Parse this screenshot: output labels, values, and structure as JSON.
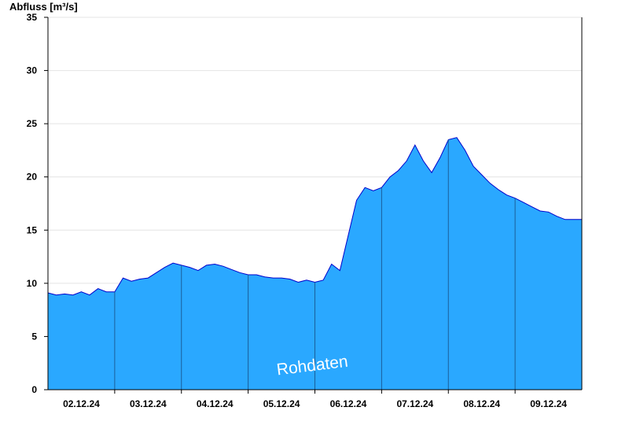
{
  "chart_data": {
    "type": "area",
    "ylabel": "Abfluss [m³/s]",
    "ylim": [
      0,
      35
    ],
    "yticks": [
      0,
      5,
      10,
      15,
      20,
      25,
      30,
      35
    ],
    "xlim": [
      "2024-12-01 12:00",
      "2024-12-09 12:00"
    ],
    "xticks": [
      {
        "label": "02.12.24",
        "at": "2024-12-02 00:00"
      },
      {
        "label": "03.12.24",
        "at": "2024-12-03 00:00"
      },
      {
        "label": "04.12.24",
        "at": "2024-12-04 00:00"
      },
      {
        "label": "05.12.24",
        "at": "2024-12-05 00:00"
      },
      {
        "label": "06.12.24",
        "at": "2024-12-06 00:00"
      },
      {
        "label": "07.12.24",
        "at": "2024-12-07 00:00"
      },
      {
        "label": "08.12.24",
        "at": "2024-12-08 00:00"
      },
      {
        "label": "09.12.24",
        "at": "2024-12-09 00:00"
      }
    ],
    "grid": "horizontal",
    "watermark": "Rohdaten",
    "colors": {
      "fill": "#2aa8ff",
      "line": "#0000cc",
      "divider": "#1a5e99"
    },
    "x": [
      "2024-12-01 12:00",
      "2024-12-01 15:00",
      "2024-12-01 18:00",
      "2024-12-01 21:00",
      "2024-12-02 00:00",
      "2024-12-02 03:00",
      "2024-12-02 06:00",
      "2024-12-02 09:00",
      "2024-12-02 12:00",
      "2024-12-02 15:00",
      "2024-12-02 18:00",
      "2024-12-02 21:00",
      "2024-12-03 00:00",
      "2024-12-03 03:00",
      "2024-12-03 06:00",
      "2024-12-03 09:00",
      "2024-12-03 12:00",
      "2024-12-03 15:00",
      "2024-12-03 18:00",
      "2024-12-03 21:00",
      "2024-12-04 00:00",
      "2024-12-04 03:00",
      "2024-12-04 06:00",
      "2024-12-04 09:00",
      "2024-12-04 12:00",
      "2024-12-04 15:00",
      "2024-12-04 18:00",
      "2024-12-04 21:00",
      "2024-12-05 00:00",
      "2024-12-05 03:00",
      "2024-12-05 06:00",
      "2024-12-05 09:00",
      "2024-12-05 12:00",
      "2024-12-05 15:00",
      "2024-12-05 18:00",
      "2024-12-05 21:00",
      "2024-12-06 00:00",
      "2024-12-06 03:00",
      "2024-12-06 06:00",
      "2024-12-06 09:00",
      "2024-12-06 12:00",
      "2024-12-06 15:00",
      "2024-12-06 18:00",
      "2024-12-06 21:00",
      "2024-12-07 00:00",
      "2024-12-07 03:00",
      "2024-12-07 06:00",
      "2024-12-07 09:00",
      "2024-12-07 12:00",
      "2024-12-07 15:00",
      "2024-12-07 18:00",
      "2024-12-07 21:00",
      "2024-12-08 00:00",
      "2024-12-08 03:00",
      "2024-12-08 06:00",
      "2024-12-08 09:00",
      "2024-12-08 12:00",
      "2024-12-08 15:00",
      "2024-12-08 18:00",
      "2024-12-08 21:00",
      "2024-12-09 00:00",
      "2024-12-09 03:00",
      "2024-12-09 06:00",
      "2024-12-09 09:00",
      "2024-12-09 12:00"
    ],
    "series": [
      {
        "values": [
          9.1,
          8.9,
          9.0,
          8.9,
          9.2,
          8.9,
          9.5,
          9.2,
          9.2,
          10.5,
          10.2,
          10.4,
          10.5,
          11.0,
          11.5,
          11.9,
          11.7,
          11.5,
          11.2,
          11.7,
          11.8,
          11.6,
          11.3,
          11.0,
          10.8,
          10.8,
          10.6,
          10.5,
          10.5,
          10.4,
          10.1,
          10.3,
          10.1,
          10.3,
          11.8,
          11.2,
          14.5,
          17.8,
          19.0,
          18.7,
          19.0,
          20.0,
          20.6,
          21.5,
          23.0,
          21.5,
          20.4,
          21.8,
          23.5,
          23.7,
          22.5,
          21.0,
          20.2,
          19.4,
          18.8,
          18.3,
          18.0,
          17.6,
          17.2,
          16.8,
          16.7,
          16.3,
          16.0,
          16.0,
          16.0
        ]
      }
    ]
  }
}
